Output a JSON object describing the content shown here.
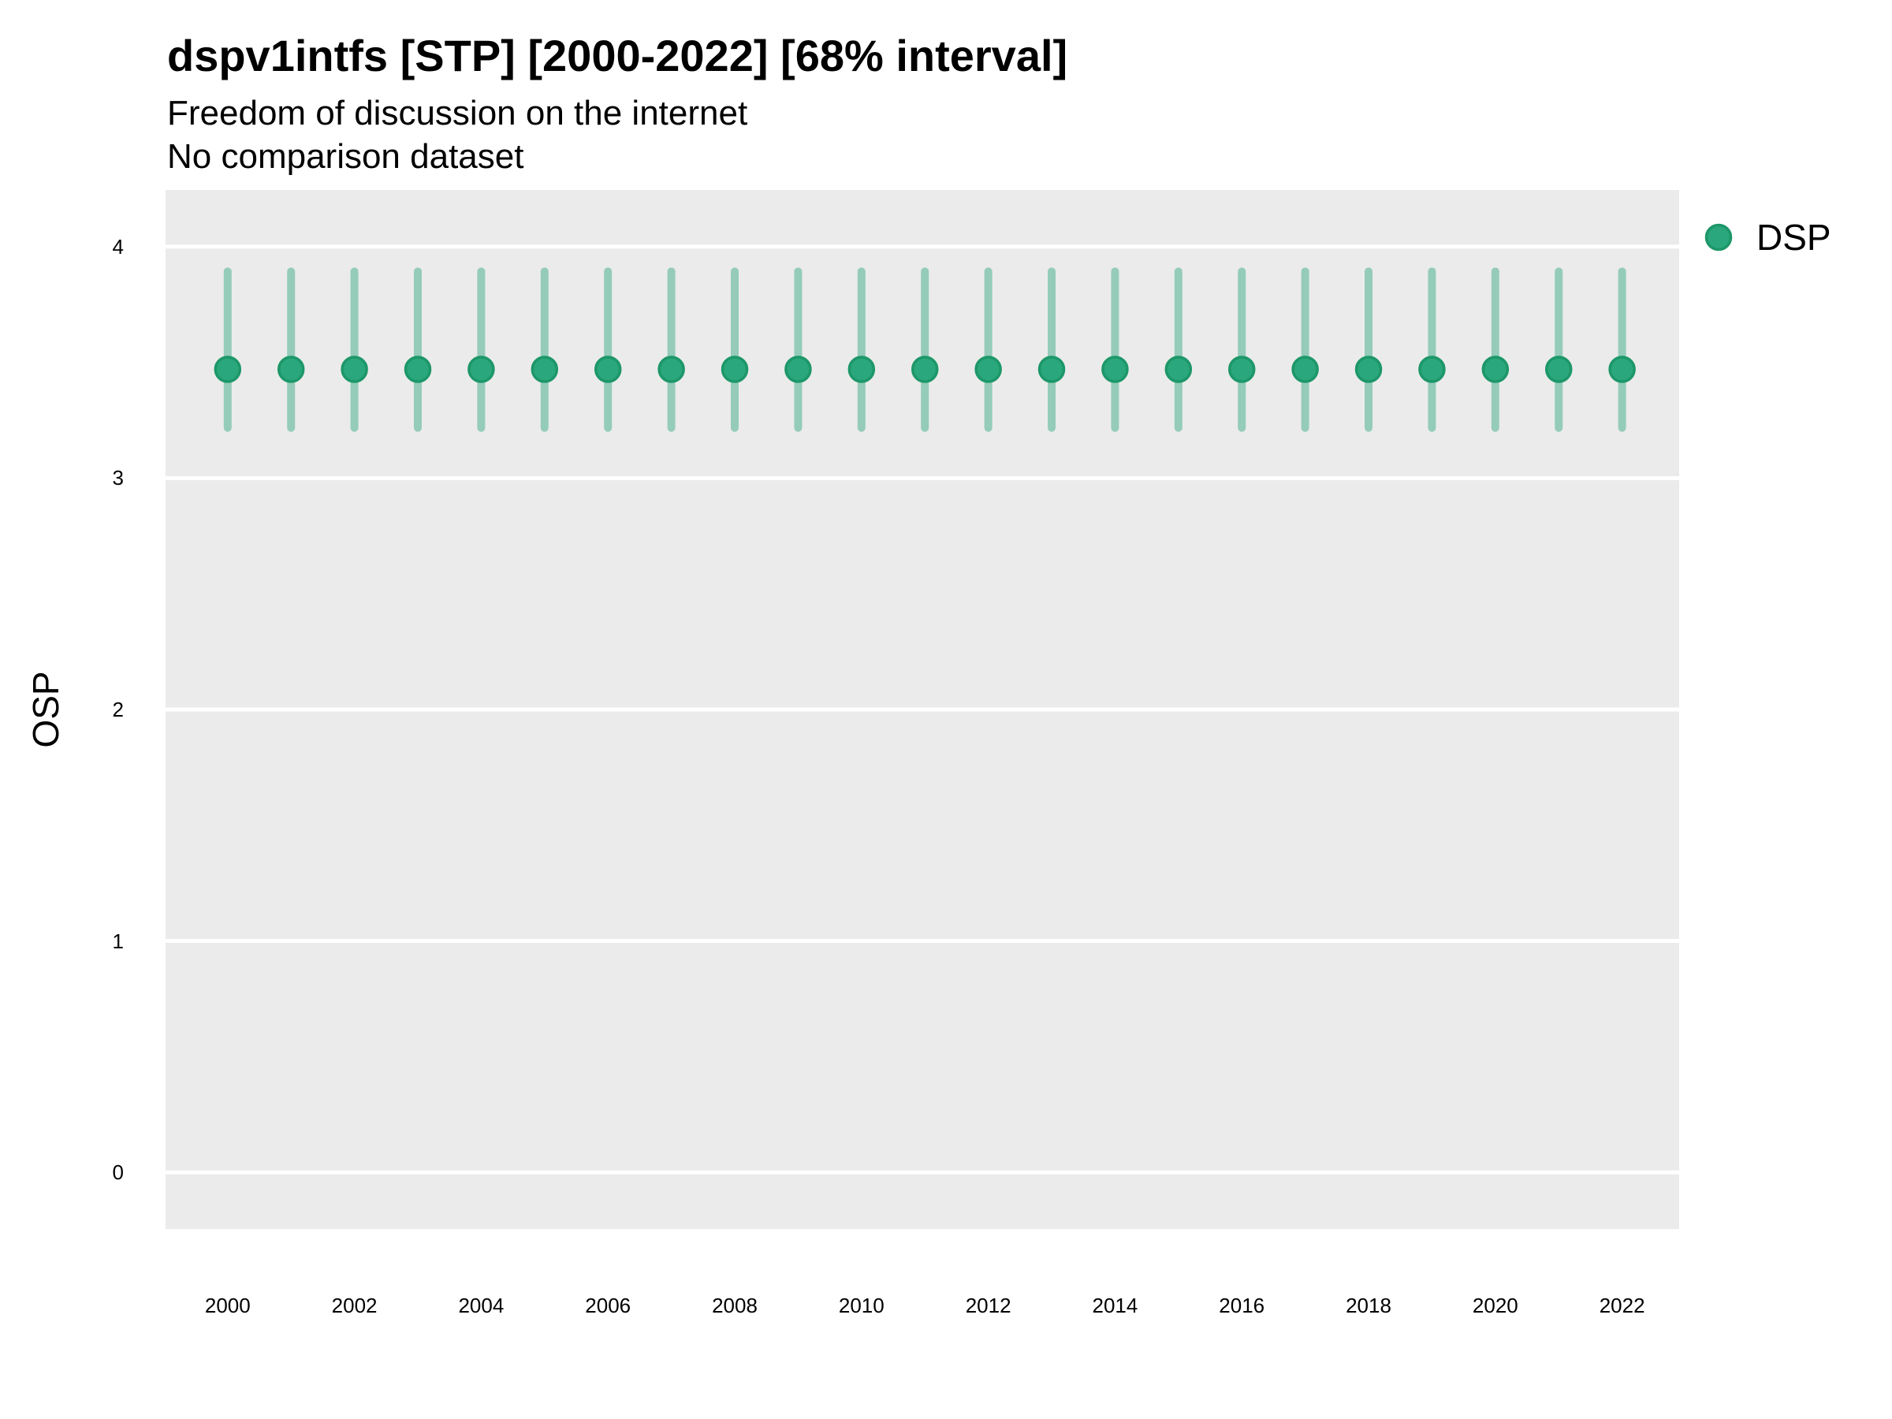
{
  "title": "dspv1intfs [STP] [2000-2022] [68% interval]",
  "subtitle": "Freedom of discussion on the internet",
  "note": "No comparison dataset",
  "legend": {
    "label": "DSP",
    "position": "right-top"
  },
  "colors": {
    "point_fill": "#2BA77D",
    "point_stroke": "#1D9769",
    "interval": "#2BA77D",
    "interval_opacity": 0.45,
    "panel_background": "#EBEBEB",
    "gridline": "#FFFFFF",
    "text": "#000000"
  },
  "chart_data": {
    "type": "scatter",
    "title": "dspv1intfs [STP] [2000-2022] [68% interval]",
    "subtitle": "Freedom of discussion on the internet",
    "note": "No comparison dataset",
    "xlabel": "",
    "ylabel": "OSP",
    "interval_level": "68%",
    "grid": "horizontal-major-only",
    "legend_position": "right-top",
    "x": [
      2000,
      2001,
      2002,
      2003,
      2004,
      2005,
      2006,
      2007,
      2008,
      2009,
      2010,
      2011,
      2012,
      2013,
      2014,
      2015,
      2016,
      2017,
      2018,
      2019,
      2020,
      2021,
      2022
    ],
    "series": [
      {
        "name": "DSP",
        "values": [
          3.47,
          3.47,
          3.47,
          3.47,
          3.47,
          3.47,
          3.47,
          3.47,
          3.47,
          3.47,
          3.47,
          3.47,
          3.47,
          3.47,
          3.47,
          3.47,
          3.47,
          3.47,
          3.47,
          3.47,
          3.47,
          3.47,
          3.47
        ],
        "interval_low": [
          3.2,
          3.2,
          3.2,
          3.2,
          3.2,
          3.2,
          3.2,
          3.2,
          3.2,
          3.2,
          3.2,
          3.2,
          3.2,
          3.2,
          3.2,
          3.2,
          3.2,
          3.2,
          3.2,
          3.2,
          3.2,
          3.2,
          3.2
        ],
        "interval_high": [
          3.91,
          3.91,
          3.91,
          3.91,
          3.91,
          3.91,
          3.91,
          3.91,
          3.91,
          3.91,
          3.91,
          3.91,
          3.91,
          3.91,
          3.91,
          3.91,
          3.91,
          3.91,
          3.91,
          3.91,
          3.91,
          3.91,
          3.91
        ]
      }
    ],
    "x_ticks": [
      2000,
      2002,
      2004,
      2006,
      2008,
      2010,
      2012,
      2014,
      2016,
      2018,
      2020,
      2022
    ],
    "y_ticks": [
      0,
      1,
      2,
      3,
      4
    ],
    "xlim": [
      1999.02,
      2022.9
    ],
    "ylim": [
      -0.245,
      4.245
    ]
  }
}
